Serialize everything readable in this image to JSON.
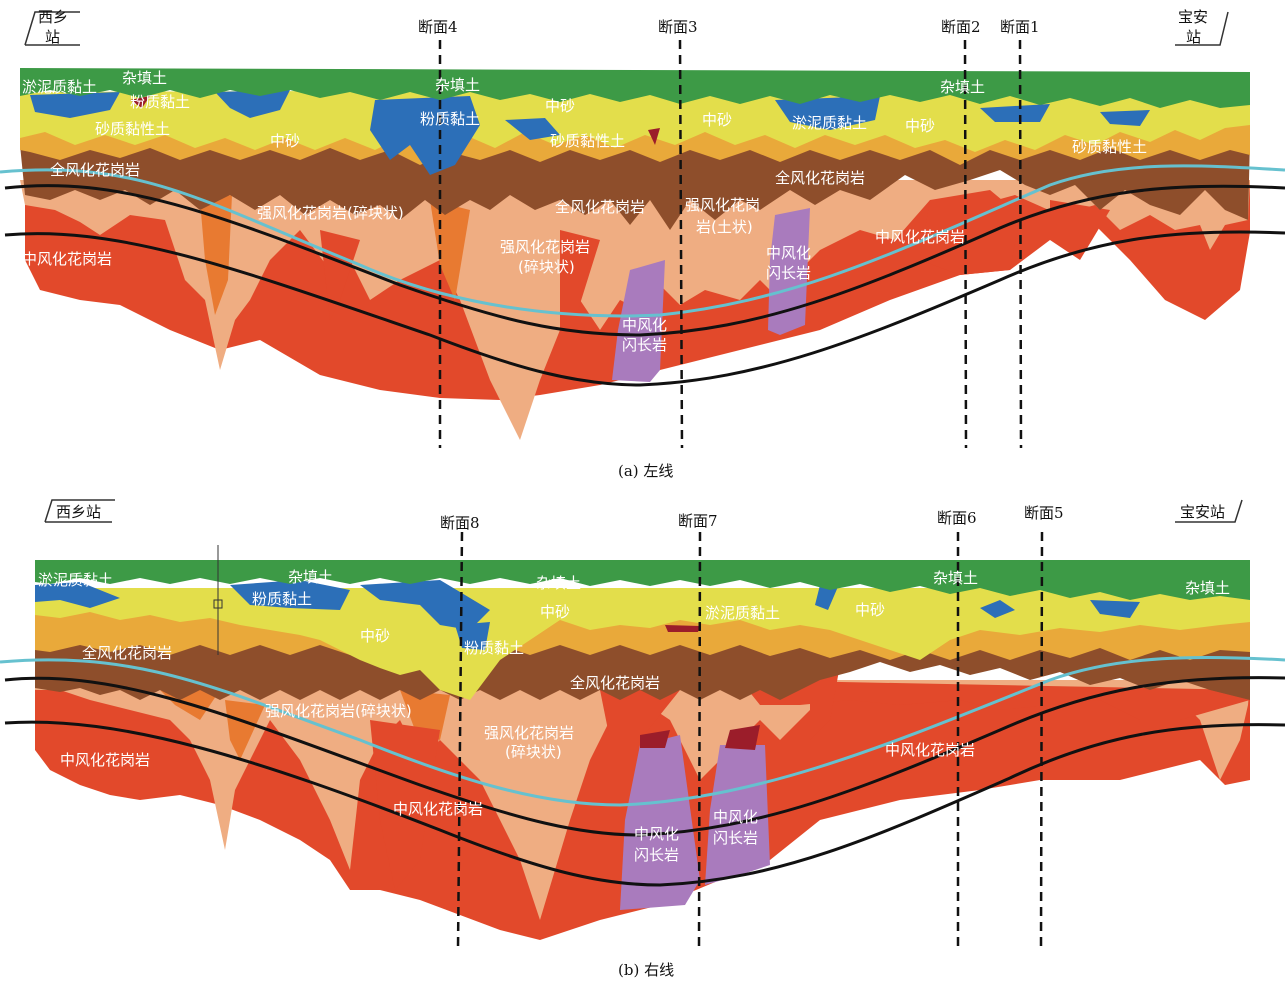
{
  "colors": {
    "fill_soil": "#3d9a46",
    "silt_clay": "#2c6fb8",
    "medium_sand": "#e3de4b",
    "sandy_clay": "#e9a93a",
    "full_weathered": "#8e4e2b",
    "strong_weathered": "#efad82",
    "strong_weathered_orange": "#e87a31",
    "moderate_weathered": "#e2492b",
    "diorite": "#a97bbd",
    "tunnel": "#111111",
    "water_table": "#66c1cf"
  },
  "panel_a": {
    "caption": "(a) 左线",
    "station_left": [
      "西乡",
      "站"
    ],
    "station_right": [
      "宝安",
      "站"
    ],
    "sections": [
      "断面4",
      "断面3",
      "断面2",
      "断面1"
    ],
    "labels": {
      "silt_clay_left": "淤泥质黏土",
      "fill_left": "杂填土",
      "silty_clay_left": "粉质黏土",
      "sandy_clay_left": "砂质黏性土",
      "sand_left": "中砂",
      "fill_mid": "杂填土",
      "silty_clay_mid": "粉质黏土",
      "sand_mid": "中砂",
      "sandy_clay_mid": "砂质黏性土",
      "sand_mid2": "中砂",
      "silt_clay_right": "淤泥质黏土",
      "sand_right": "中砂",
      "fill_right": "杂填土",
      "sandy_clay_right": "砂质黏性土",
      "full_left": "全风化花岗岩",
      "strong_left": "强风化花岗岩(碎块状)",
      "full_mid": "全风化花岗岩",
      "strong_mid_1": "强风化花岗岩",
      "strong_mid_2": "(碎块状)",
      "strong_soil_1": "强风化花岗",
      "strong_soil_2": "岩(土状)",
      "full_right": "全风化花岗岩",
      "moderate_right": "中风化花岗岩",
      "moderate_left": "中风化花岗岩",
      "diorite_a_1": "中风化",
      "diorite_a_2": "闪长岩",
      "diorite_b_1": "中风化",
      "diorite_b_2": "闪长岩"
    }
  },
  "panel_b": {
    "caption": "(b) 右线",
    "station_left": "西乡站",
    "station_right": "宝安站",
    "sections": [
      "断面8",
      "断面7",
      "断面6",
      "断面5"
    ],
    "labels": {
      "silt_clay_left": "淤泥质黏土",
      "fill_left": "杂填土",
      "silty_clay_left": "粉质黏土",
      "sand_left": "中砂",
      "silty_clay_mid": "粉质黏土",
      "fill_mid": "杂填土",
      "sand_mid": "中砂",
      "silt_clay_mid": "淤泥质黏土",
      "sand_right": "中砂",
      "fill_right": "杂填土",
      "fill_far_right": "杂填土",
      "full_left": "全风化花岗岩",
      "full_mid": "全风化花岗岩",
      "strong_left": "强风化花岗岩(碎块状)",
      "strong_mid_1": "强风化花岗岩",
      "strong_mid_2": "(碎块状)",
      "moderate_left": "中风化花岗岩",
      "moderate_mid": "中风化花岗岩",
      "moderate_right": "中风化花岗岩",
      "diorite_a_1": "中风化",
      "diorite_a_2": "闪长岩",
      "diorite_b_1": "中风化",
      "diorite_b_2": "闪长岩"
    }
  }
}
